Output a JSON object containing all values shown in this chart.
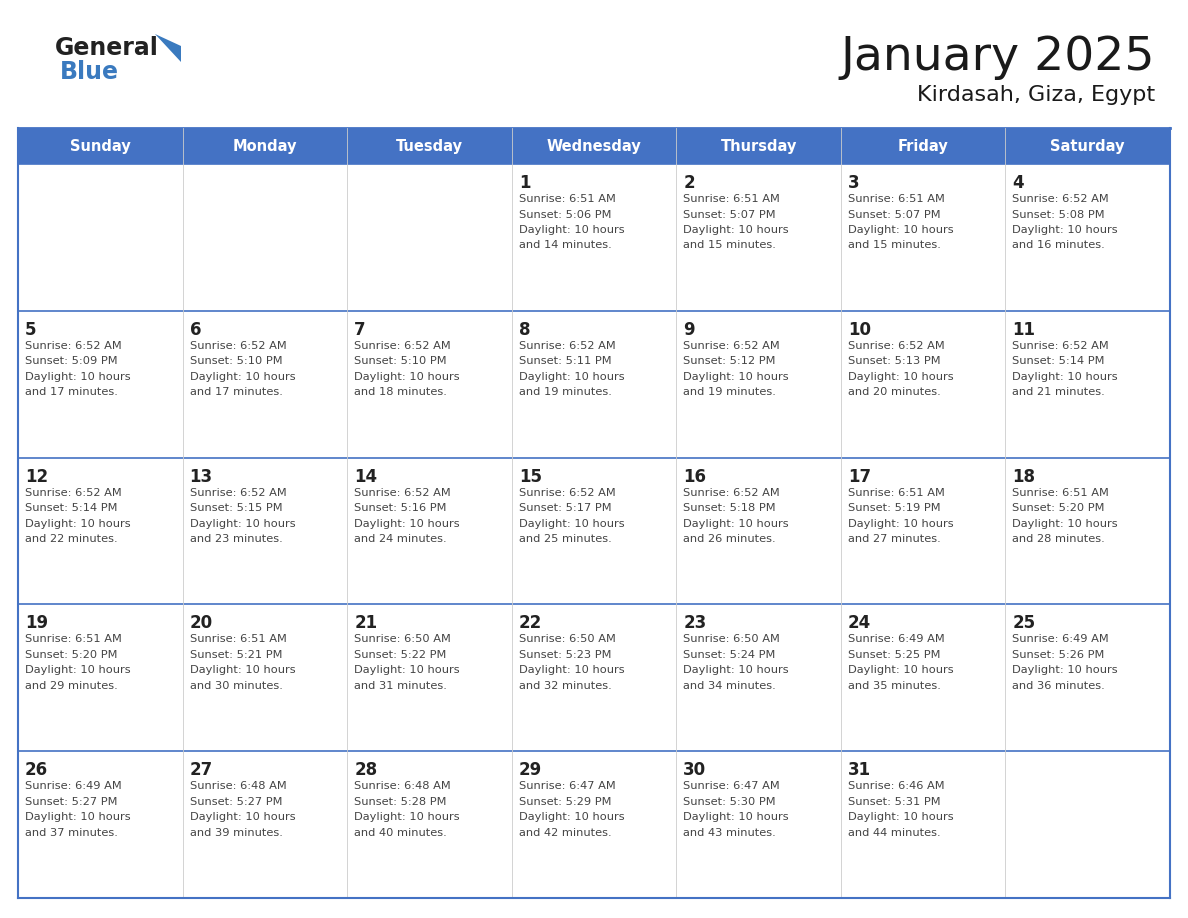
{
  "title": "January 2025",
  "subtitle": "Kirdasah, Giza, Egypt",
  "header_color": "#4472C4",
  "header_text_color": "#FFFFFF",
  "cell_bg_color": "#FFFFFF",
  "border_color": "#4472C4",
  "row_sep_color": "#4472C4",
  "col_sep_color": "#CCCCCC",
  "day_headers": [
    "Sunday",
    "Monday",
    "Tuesday",
    "Wednesday",
    "Thursday",
    "Friday",
    "Saturday"
  ],
  "title_color": "#1a1a1a",
  "subtitle_color": "#1a1a1a",
  "day_number_color": "#222222",
  "cell_text_color": "#444444",
  "calendar": [
    [
      {
        "day": "",
        "info": ""
      },
      {
        "day": "",
        "info": ""
      },
      {
        "day": "",
        "info": ""
      },
      {
        "day": "1",
        "info": "Sunrise: 6:51 AM\nSunset: 5:06 PM\nDaylight: 10 hours\nand 14 minutes."
      },
      {
        "day": "2",
        "info": "Sunrise: 6:51 AM\nSunset: 5:07 PM\nDaylight: 10 hours\nand 15 minutes."
      },
      {
        "day": "3",
        "info": "Sunrise: 6:51 AM\nSunset: 5:07 PM\nDaylight: 10 hours\nand 15 minutes."
      },
      {
        "day": "4",
        "info": "Sunrise: 6:52 AM\nSunset: 5:08 PM\nDaylight: 10 hours\nand 16 minutes."
      }
    ],
    [
      {
        "day": "5",
        "info": "Sunrise: 6:52 AM\nSunset: 5:09 PM\nDaylight: 10 hours\nand 17 minutes."
      },
      {
        "day": "6",
        "info": "Sunrise: 6:52 AM\nSunset: 5:10 PM\nDaylight: 10 hours\nand 17 minutes."
      },
      {
        "day": "7",
        "info": "Sunrise: 6:52 AM\nSunset: 5:10 PM\nDaylight: 10 hours\nand 18 minutes."
      },
      {
        "day": "8",
        "info": "Sunrise: 6:52 AM\nSunset: 5:11 PM\nDaylight: 10 hours\nand 19 minutes."
      },
      {
        "day": "9",
        "info": "Sunrise: 6:52 AM\nSunset: 5:12 PM\nDaylight: 10 hours\nand 19 minutes."
      },
      {
        "day": "10",
        "info": "Sunrise: 6:52 AM\nSunset: 5:13 PM\nDaylight: 10 hours\nand 20 minutes."
      },
      {
        "day": "11",
        "info": "Sunrise: 6:52 AM\nSunset: 5:14 PM\nDaylight: 10 hours\nand 21 minutes."
      }
    ],
    [
      {
        "day": "12",
        "info": "Sunrise: 6:52 AM\nSunset: 5:14 PM\nDaylight: 10 hours\nand 22 minutes."
      },
      {
        "day": "13",
        "info": "Sunrise: 6:52 AM\nSunset: 5:15 PM\nDaylight: 10 hours\nand 23 minutes."
      },
      {
        "day": "14",
        "info": "Sunrise: 6:52 AM\nSunset: 5:16 PM\nDaylight: 10 hours\nand 24 minutes."
      },
      {
        "day": "15",
        "info": "Sunrise: 6:52 AM\nSunset: 5:17 PM\nDaylight: 10 hours\nand 25 minutes."
      },
      {
        "day": "16",
        "info": "Sunrise: 6:52 AM\nSunset: 5:18 PM\nDaylight: 10 hours\nand 26 minutes."
      },
      {
        "day": "17",
        "info": "Sunrise: 6:51 AM\nSunset: 5:19 PM\nDaylight: 10 hours\nand 27 minutes."
      },
      {
        "day": "18",
        "info": "Sunrise: 6:51 AM\nSunset: 5:20 PM\nDaylight: 10 hours\nand 28 minutes."
      }
    ],
    [
      {
        "day": "19",
        "info": "Sunrise: 6:51 AM\nSunset: 5:20 PM\nDaylight: 10 hours\nand 29 minutes."
      },
      {
        "day": "20",
        "info": "Sunrise: 6:51 AM\nSunset: 5:21 PM\nDaylight: 10 hours\nand 30 minutes."
      },
      {
        "day": "21",
        "info": "Sunrise: 6:50 AM\nSunset: 5:22 PM\nDaylight: 10 hours\nand 31 minutes."
      },
      {
        "day": "22",
        "info": "Sunrise: 6:50 AM\nSunset: 5:23 PM\nDaylight: 10 hours\nand 32 minutes."
      },
      {
        "day": "23",
        "info": "Sunrise: 6:50 AM\nSunset: 5:24 PM\nDaylight: 10 hours\nand 34 minutes."
      },
      {
        "day": "24",
        "info": "Sunrise: 6:49 AM\nSunset: 5:25 PM\nDaylight: 10 hours\nand 35 minutes."
      },
      {
        "day": "25",
        "info": "Sunrise: 6:49 AM\nSunset: 5:26 PM\nDaylight: 10 hours\nand 36 minutes."
      }
    ],
    [
      {
        "day": "26",
        "info": "Sunrise: 6:49 AM\nSunset: 5:27 PM\nDaylight: 10 hours\nand 37 minutes."
      },
      {
        "day": "27",
        "info": "Sunrise: 6:48 AM\nSunset: 5:27 PM\nDaylight: 10 hours\nand 39 minutes."
      },
      {
        "day": "28",
        "info": "Sunrise: 6:48 AM\nSunset: 5:28 PM\nDaylight: 10 hours\nand 40 minutes."
      },
      {
        "day": "29",
        "info": "Sunrise: 6:47 AM\nSunset: 5:29 PM\nDaylight: 10 hours\nand 42 minutes."
      },
      {
        "day": "30",
        "info": "Sunrise: 6:47 AM\nSunset: 5:30 PM\nDaylight: 10 hours\nand 43 minutes."
      },
      {
        "day": "31",
        "info": "Sunrise: 6:46 AM\nSunset: 5:31 PM\nDaylight: 10 hours\nand 44 minutes."
      },
      {
        "day": "",
        "info": ""
      }
    ]
  ]
}
